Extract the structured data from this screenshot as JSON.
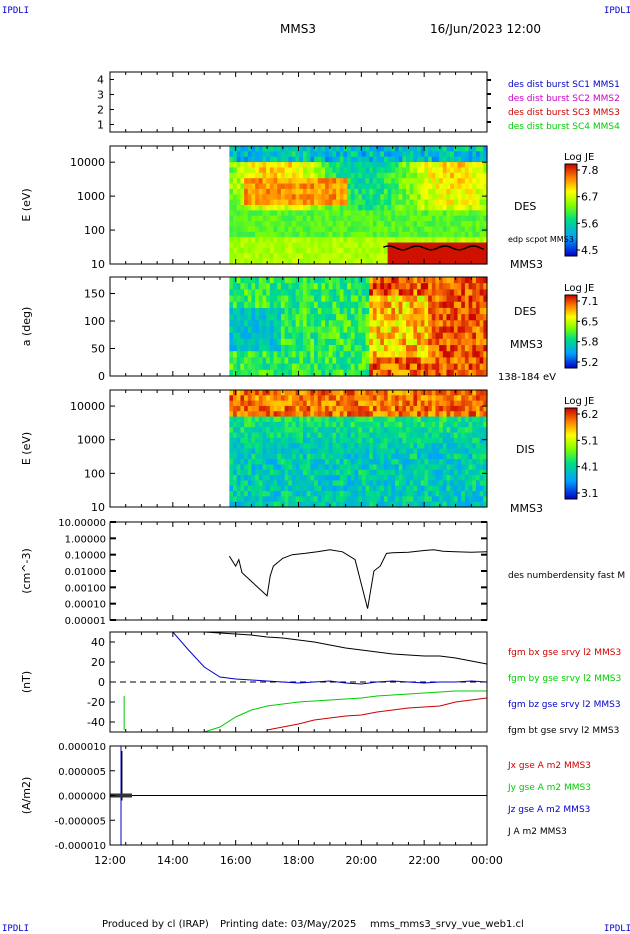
{
  "corners": {
    "tl": "IPDLI",
    "tr": "IPDLI",
    "bl": "IPDLI",
    "br": "IPDLI"
  },
  "header": {
    "spacecraft": "MMS3",
    "datetime": "16/Jun/2023 12:00"
  },
  "footer": {
    "produced": "Produced by cl (IRAP)",
    "printing": "Printing date: 03/May/2025",
    "script": "mms_mms3_srvy_vue_web1.cl"
  },
  "colors": {
    "sc1": "#0000cc",
    "sc2": "#cc00cc",
    "sc3": "#cc0000",
    "sc4": "#00cc00",
    "bx": "#cc0000",
    "by": "#00cc00",
    "bz": "#0000cc",
    "bt": "#000000"
  },
  "chart_data": [
    {
      "type": "scatter",
      "panel": "burst-intervals",
      "yticks": [
        "4",
        "3",
        "2",
        "1"
      ],
      "ylim": [
        0.5,
        4.5
      ],
      "series": [
        {
          "name": "des dist burst SC1 MMS1",
          "values": []
        },
        {
          "name": "des dist burst SC2 MMS2",
          "values": []
        },
        {
          "name": "des dist burst SC3 MMS3",
          "values": []
        },
        {
          "name": "des dist burst SC4 MMS4",
          "values": []
        }
      ]
    },
    {
      "type": "heatmap",
      "panel": "des-energy",
      "ylabel": "E (eV)",
      "yscale": "log",
      "yticks": [
        "10000",
        "1000",
        "100",
        "10"
      ],
      "ylim": [
        10,
        30000
      ],
      "data_start_hour": 15.8,
      "instrument": "DES",
      "spacecraft": "MMS3",
      "overlay": "edp scpot MMS3",
      "colorbar": {
        "title": "Log JE",
        "ticks": [
          "7.8",
          "6.7",
          "5.6",
          "4.5"
        ],
        "range": [
          4.5,
          7.8
        ]
      }
    },
    {
      "type": "heatmap",
      "panel": "des-pitch-angle",
      "ylabel": "a (deg)",
      "yticks": [
        "150",
        "100",
        "50",
        "0"
      ],
      "ylim": [
        0,
        180
      ],
      "data_start_hour": 15.8,
      "instrument": "DES",
      "spacecraft": "MMS3",
      "energy_range": "138-184 eV",
      "colorbar": {
        "title": "Log JE",
        "ticks": [
          "7.1",
          "6.5",
          "5.8",
          "5.2"
        ],
        "range": [
          5.2,
          7.1
        ]
      }
    },
    {
      "type": "heatmap",
      "panel": "dis-energy",
      "ylabel": "E (eV)",
      "yscale": "log",
      "yticks": [
        "10000",
        "1000",
        "100",
        "10"
      ],
      "ylim": [
        10,
        30000
      ],
      "data_start_hour": 15.8,
      "instrument": "DIS",
      "spacecraft": "MMS3",
      "colorbar": {
        "title": "Log JE",
        "ticks": [
          "6.2",
          "5.1",
          "4.1",
          "3.1"
        ],
        "range": [
          3.1,
          6.2
        ]
      }
    },
    {
      "type": "line",
      "panel": "density",
      "ylabel": "(cm^-3)",
      "yscale": "log",
      "yticks": [
        "10.00000",
        "1.00000",
        "0.10000",
        "0.01000",
        "0.00100",
        "0.00010",
        "0.00001"
      ],
      "ylim": [
        1e-05,
        10
      ],
      "series": [
        {
          "name": "des numberdensity fast M",
          "x": [
            15.8,
            16.0,
            16.1,
            16.2,
            17.0,
            17.1,
            17.2,
            17.5,
            17.8,
            18.2,
            18.6,
            19.0,
            19.4,
            19.8,
            20.2,
            20.4,
            20.6,
            20.8,
            21.0,
            21.5,
            22.0,
            22.3,
            22.6,
            23.0,
            23.5,
            24.0
          ],
          "y": [
            0.08,
            0.02,
            0.05,
            0.008,
            0.0003,
            0.005,
            0.02,
            0.06,
            0.1,
            0.12,
            0.15,
            0.2,
            0.15,
            0.05,
            5e-05,
            0.01,
            0.02,
            0.12,
            0.13,
            0.14,
            0.18,
            0.2,
            0.16,
            0.15,
            0.14,
            0.15
          ]
        }
      ]
    },
    {
      "type": "line",
      "panel": "magnetic-field",
      "ylabel": "(nT)",
      "yticks": [
        "40",
        "20",
        "0",
        "-20",
        "-40"
      ],
      "ylim": [
        -50,
        50
      ],
      "x": [
        14.0,
        14.5,
        15.0,
        15.5,
        16.0,
        16.5,
        17.0,
        17.5,
        18.0,
        18.5,
        19.0,
        19.5,
        20.0,
        20.5,
        21.0,
        21.5,
        22.0,
        22.5,
        23.0,
        23.5,
        24.0
      ],
      "series": [
        {
          "name": "fgm bx gse srvy l2 MMS3",
          "color": "#cc0000",
          "values": [
            null,
            null,
            null,
            null,
            null,
            null,
            -48,
            -45,
            -42,
            -38,
            -36,
            -34,
            -33,
            -30,
            -28,
            -26,
            -25,
            -24,
            -20,
            -18,
            -16
          ]
        },
        {
          "name": "fgm by gse srvy l2 MMS3",
          "color": "#00cc00",
          "values": [
            null,
            null,
            -50,
            -45,
            -35,
            -28,
            -24,
            -22,
            -20,
            -19,
            -18,
            -17,
            -16,
            -14,
            -13,
            -12,
            -11,
            -10,
            -9,
            -9,
            -9
          ]
        },
        {
          "name": "fgm bz gse srvy l2 MMS3",
          "color": "#0000cc",
          "values": [
            50,
            32,
            15,
            5,
            3,
            2,
            1,
            0,
            -1,
            0,
            1,
            -1,
            -2,
            0,
            1,
            0,
            -1,
            0,
            0,
            1,
            0
          ]
        },
        {
          "name": "fgm bt gse srvy l2 MMS3",
          "color": "#000000",
          "values": [
            50,
            50,
            50,
            49,
            48,
            47,
            45,
            44,
            42,
            40,
            37,
            34,
            32,
            30,
            28,
            27,
            26,
            26,
            24,
            21,
            18
          ]
        }
      ]
    },
    {
      "type": "line",
      "panel": "current-density",
      "ylabel": "(A/m2)",
      "yticks": [
        "0.000010",
        "0.000005",
        "0.000000",
        "-0.000005",
        "-0.000010"
      ],
      "ylim": [
        -1e-05,
        1e-05
      ],
      "series": [
        {
          "name": "Jx gse A m2 MMS3",
          "color": "#cc0000"
        },
        {
          "name": "Jy gse A m2 MMS3",
          "color": "#00cc00"
        },
        {
          "name": "Jz gse A m2 MMS3",
          "color": "#0000cc"
        },
        {
          "name": "J A m2 MMS3",
          "color": "#000000"
        }
      ]
    }
  ],
  "time_axis": {
    "ticks": [
      "12:00",
      "14:00",
      "16:00",
      "18:00",
      "20:00",
      "22:00",
      "00:00"
    ],
    "range": [
      12,
      24
    ]
  }
}
